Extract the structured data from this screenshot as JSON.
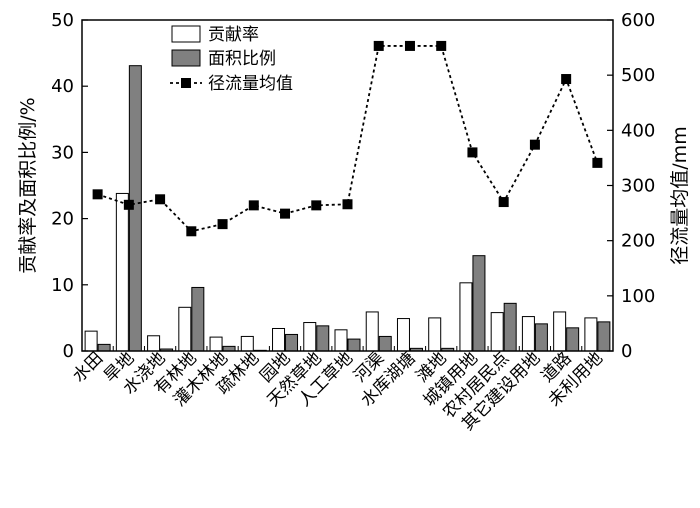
{
  "chart_data": {
    "type": "bar",
    "categories": [
      "水田",
      "旱地",
      "水浇地",
      "有林地",
      "灌木林地",
      "疏林地",
      "园地",
      "天然草地",
      "人工草地",
      "河渠",
      "水库湖塘",
      "滩地",
      "城镇用地",
      "农村居民点",
      "其它建设用地",
      "道路",
      "未利用地"
    ],
    "series": [
      {
        "name": "贡献率",
        "kind": "bar",
        "axis": "left",
        "color": "#ffffff",
        "values": [
          3.0,
          23.8,
          2.3,
          6.6,
          2.1,
          2.2,
          3.4,
          4.3,
          3.2,
          5.9,
          4.9,
          5.0,
          10.3,
          5.8,
          5.2,
          5.9,
          5.0
        ]
      },
      {
        "name": "面积比例",
        "kind": "bar",
        "axis": "left",
        "color": "#808080",
        "values": [
          1.0,
          43.1,
          0.3,
          9.6,
          0.7,
          0.1,
          2.5,
          3.8,
          1.8,
          2.2,
          0.4,
          0.4,
          14.4,
          7.2,
          4.1,
          3.5,
          4.4
        ]
      },
      {
        "name": "径流量均值",
        "kind": "line",
        "axis": "right",
        "color": "#000000",
        "values": [
          284,
          265,
          275,
          217,
          230,
          264,
          249,
          264,
          266,
          553,
          553,
          553,
          360,
          270,
          374,
          493,
          341
        ]
      }
    ],
    "ylabel_left": "贡献率及面积比例/%",
    "ylabel_right": "径流量均值/mm",
    "ylim_left": [
      0,
      50
    ],
    "ylim_right": [
      0,
      600
    ],
    "yticks_left": [
      "0",
      "10",
      "20",
      "30",
      "40",
      "50"
    ],
    "yticks_right": [
      "0",
      "100",
      "200",
      "300",
      "400",
      "500",
      "600"
    ],
    "legend_position": "top-center",
    "grid": false
  }
}
